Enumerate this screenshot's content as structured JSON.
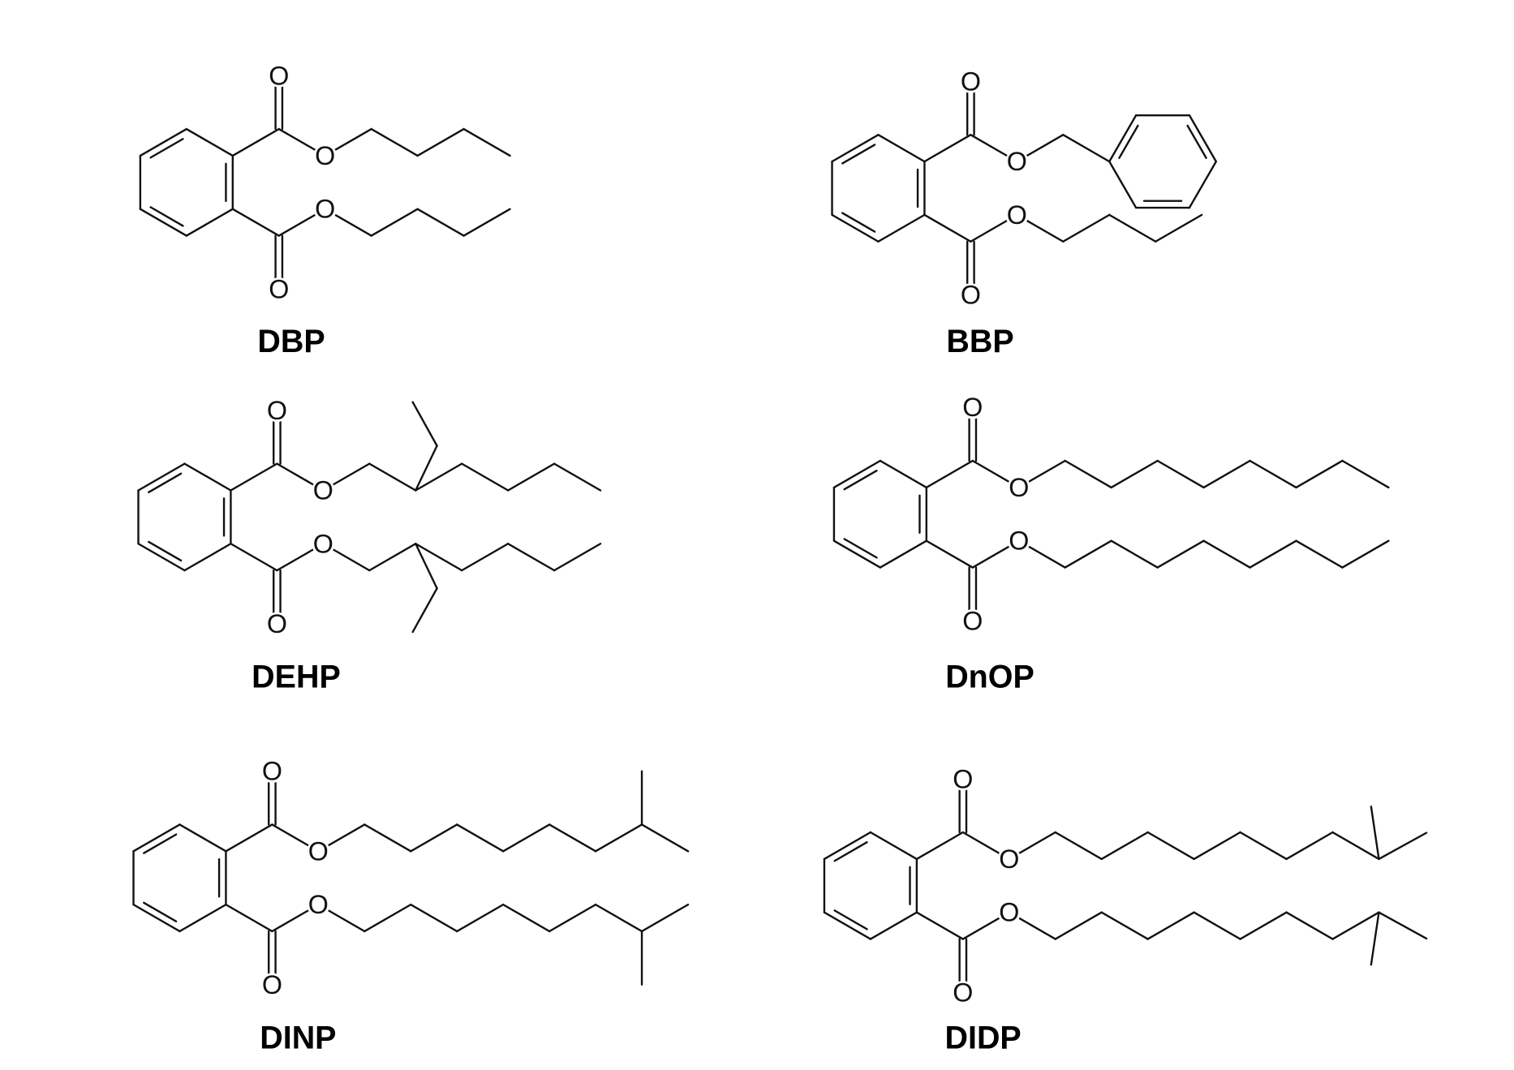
{
  "molecules": [
    {
      "name": "DBP",
      "oxygens": [
        "O",
        "O",
        "O",
        "O"
      ]
    },
    {
      "name": "BBP",
      "oxygens": [
        "O",
        "O",
        "O",
        "O"
      ]
    },
    {
      "name": "DEHP",
      "oxygens": [
        "O",
        "O",
        "O",
        "O"
      ]
    },
    {
      "name": "DnOP",
      "oxygens": [
        "O",
        "O",
        "O",
        "O"
      ]
    },
    {
      "name": "DINP",
      "oxygens": [
        "O",
        "O",
        "O",
        "O"
      ]
    },
    {
      "name": "DIDP",
      "oxygens": [
        "O",
        "O",
        "O",
        "O"
      ]
    }
  ]
}
